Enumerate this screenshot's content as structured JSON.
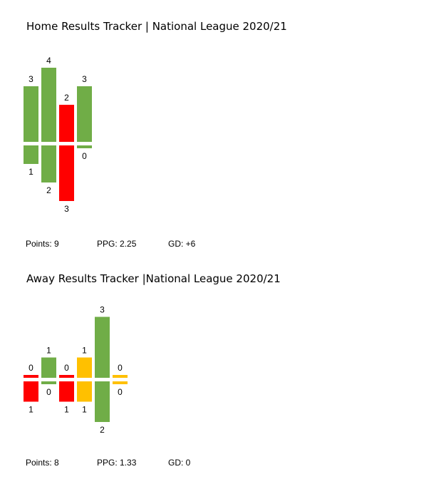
{
  "colors": {
    "win": "#70AD47",
    "loss": "#FF0000",
    "draw": "#FFC000"
  },
  "charts": [
    {
      "title": "Home Results Tracker | National League 2020/21",
      "stats": {
        "points": "Points: 9",
        "ppg": "PPG: 2.25",
        "gd": "GD: +6"
      }
    },
    {
      "title": "Away Results Tracker |National League 2020/21",
      "stats": {
        "points": "Points: 8",
        "ppg": "PPG: 1.33",
        "gd": "GD: 0"
      }
    }
  ],
  "chart_data": [
    {
      "type": "bar",
      "title": "Home Results Tracker | National League 2020/21",
      "series": [
        {
          "name": "",
          "values": [
            3,
            4,
            2,
            3
          ]
        },
        {
          "name": "",
          "values": [
            1,
            2,
            3,
            0
          ]
        }
      ],
      "results": [
        "win",
        "win",
        "loss",
        "win"
      ]
    },
    {
      "type": "bar",
      "title": "Away Results Tracker |National League 2020/21",
      "series": [
        {
          "name": "",
          "values": [
            0,
            1,
            0,
            1,
            3,
            0
          ]
        },
        {
          "name": "",
          "values": [
            1,
            0,
            1,
            1,
            2,
            0
          ]
        }
      ],
      "results": [
        "loss",
        "win",
        "loss",
        "draw",
        "win",
        "draw"
      ]
    }
  ]
}
